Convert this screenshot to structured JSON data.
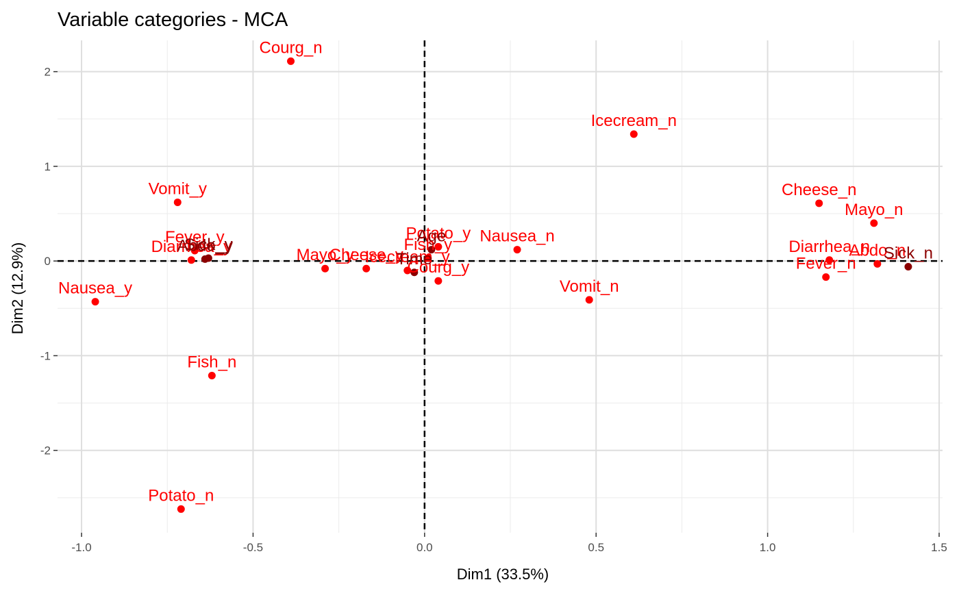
{
  "chart_data": {
    "type": "scatter",
    "title": "Variable categories - MCA",
    "xlabel": "Dim1 (33.5%)",
    "ylabel": "Dim2 (12.9%)",
    "xlim": [
      -1.07,
      1.51
    ],
    "ylim": [
      -2.87,
      2.33
    ],
    "x_ticks": [
      -1.0,
      -0.5,
      0.0,
      0.5,
      1.0,
      1.5
    ],
    "x_tick_labels": [
      "-1.0",
      "-0.5",
      "0.0",
      "0.5",
      "1.0",
      "1.5"
    ],
    "y_ticks": [
      -2,
      -1,
      0,
      1,
      2
    ],
    "y_tick_labels": [
      "-2",
      "-1",
      "0",
      "1",
      "2"
    ],
    "grid": true,
    "reference_lines": {
      "x": 0,
      "y": 0,
      "style": "dashed"
    },
    "colors": {
      "active": "#ff0000",
      "supplementary": "#8b0000"
    },
    "points": [
      {
        "label": "Courg_n",
        "x": -0.39,
        "y": 2.11,
        "group": "active"
      },
      {
        "label": "Icecream_n",
        "x": 0.61,
        "y": 1.34,
        "group": "active"
      },
      {
        "label": "Vomit_y",
        "x": -0.72,
        "y": 0.62,
        "group": "active"
      },
      {
        "label": "Cheese_n",
        "x": 1.15,
        "y": 0.61,
        "group": "active"
      },
      {
        "label": "Mayo_n",
        "x": 1.31,
        "y": 0.4,
        "group": "active"
      },
      {
        "label": "Fever_y",
        "x": -0.67,
        "y": 0.11,
        "group": "active"
      },
      {
        "label": "Diarrhea_y",
        "x": -0.68,
        "y": 0.01,
        "group": "active"
      },
      {
        "label": "Abdo_y",
        "x": -0.64,
        "y": 0.02,
        "group": "supplementary"
      },
      {
        "label": "Sick_y",
        "x": -0.63,
        "y": 0.03,
        "group": "supplementary"
      },
      {
        "label": "Potato_y",
        "x": 0.04,
        "y": 0.15,
        "group": "active"
      },
      {
        "label": "Fish_y",
        "x": 0.01,
        "y": 0.03,
        "group": "active"
      },
      {
        "label": "Nausea_n",
        "x": 0.27,
        "y": 0.12,
        "group": "active"
      },
      {
        "label": "Age",
        "x": 0.02,
        "y": 0.12,
        "group": "supplementary"
      },
      {
        "label": "Mayo_y",
        "x": -0.29,
        "y": -0.08,
        "group": "active"
      },
      {
        "label": "Cheese_y",
        "x": -0.17,
        "y": -0.08,
        "group": "active"
      },
      {
        "label": "Icecream_y",
        "x": -0.05,
        "y": -0.1,
        "group": "active"
      },
      {
        "label": "Time",
        "x": -0.03,
        "y": -0.12,
        "group": "supplementary"
      },
      {
        "label": "Courg_y",
        "x": 0.04,
        "y": -0.21,
        "group": "active"
      },
      {
        "label": "Diarrhea_n",
        "x": 1.18,
        "y": 0.01,
        "group": "active"
      },
      {
        "label": "Abdo_n",
        "x": 1.32,
        "y": -0.03,
        "group": "active"
      },
      {
        "label": "Sick_n",
        "x": 1.41,
        "y": -0.06,
        "group": "supplementary"
      },
      {
        "label": "Fever_n",
        "x": 1.17,
        "y": -0.17,
        "group": "active"
      },
      {
        "label": "Nausea_y",
        "x": -0.96,
        "y": -0.43,
        "group": "active"
      },
      {
        "label": "Vomit_n",
        "x": 0.48,
        "y": -0.41,
        "group": "active"
      },
      {
        "label": "Fish_n",
        "x": -0.62,
        "y": -1.21,
        "group": "active"
      },
      {
        "label": "Potato_n",
        "x": -0.71,
        "y": -2.62,
        "group": "active"
      }
    ]
  }
}
